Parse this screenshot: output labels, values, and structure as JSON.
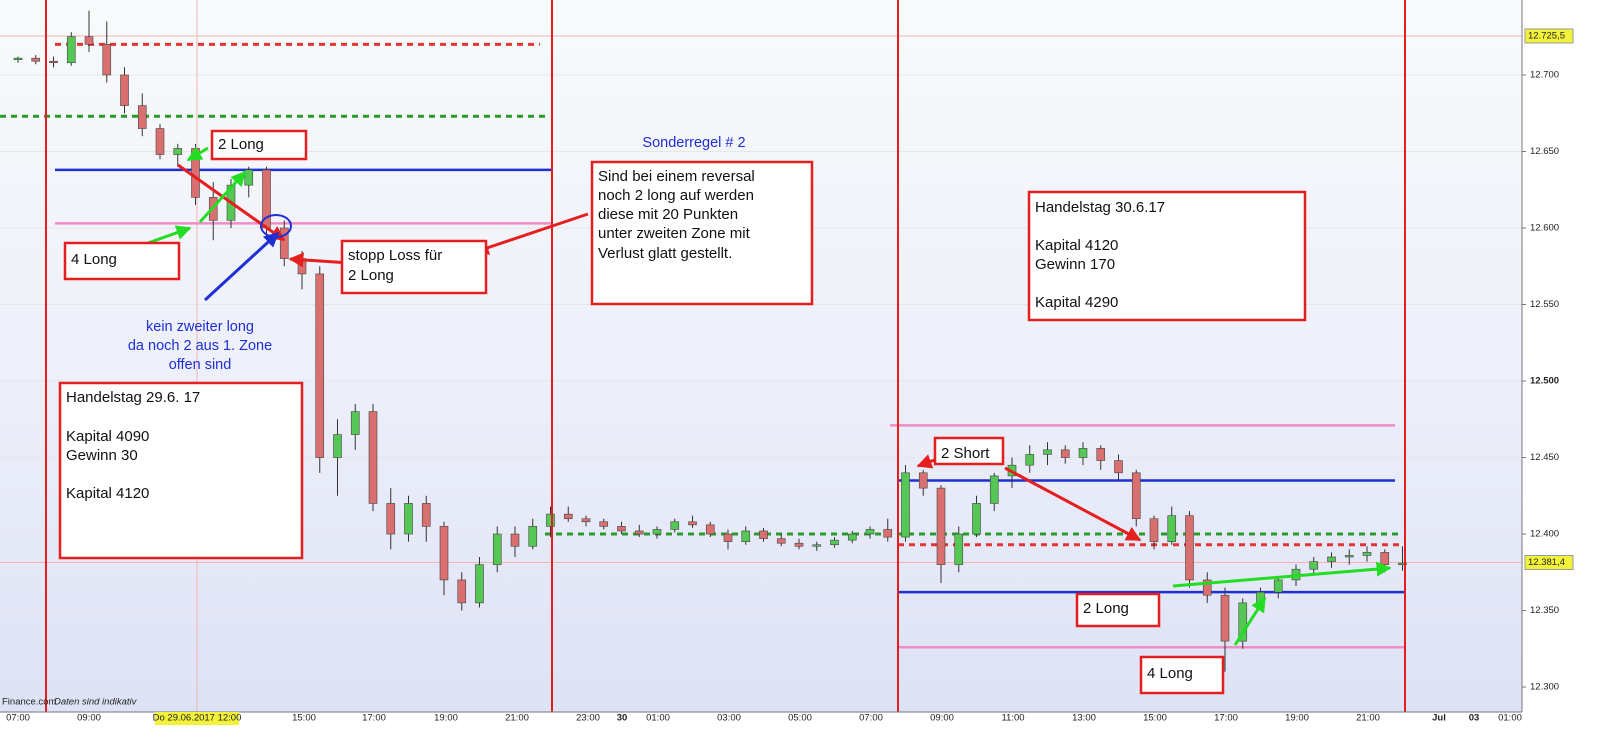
{
  "chart_data": {
    "type": "candlestick",
    "ylim": [
      12285,
      12749
    ],
    "yticks": [
      {
        "value": 12300,
        "label": "12.300"
      },
      {
        "value": 12350,
        "label": "12.350"
      },
      {
        "value": 12400,
        "label": "12.400"
      },
      {
        "value": 12450,
        "label": "12.450"
      },
      {
        "value": 12500,
        "label": "12.500"
      },
      {
        "value": 12550,
        "label": "12.550"
      },
      {
        "value": 12600,
        "label": "12.600"
      },
      {
        "value": 12650,
        "label": "12.650"
      },
      {
        "value": 12700,
        "label": "12.700"
      }
    ],
    "price_markers": [
      {
        "value": 12725.5,
        "label": "12.725,5"
      },
      {
        "value": 12381.4,
        "label": "12.381,4"
      }
    ],
    "xtick_labels": [
      "07:00",
      "09:00",
      "Do 29.06.2017 12:00",
      "15:00",
      "17:00",
      "19:00",
      "21:00",
      "23:00",
      "30",
      "01:00",
      "03:00",
      "05:00",
      "07:00",
      "09:00",
      "11:00",
      "13:00",
      "15:00",
      "17:00",
      "19:00",
      "21:00",
      "Jul",
      "03",
      "01:00"
    ],
    "up_color": "#55c755",
    "down_color": "#d9706f",
    "open": [
      12710,
      12711,
      12709,
      12708,
      12725,
      12720,
      12700,
      12680,
      12665,
      12648,
      12652,
      12620,
      12605,
      12628,
      12638,
      12600,
      12580,
      12570,
      12450,
      12465,
      12480,
      12420,
      12400,
      12420,
      12405,
      12370,
      12355,
      12380,
      12400,
      12392,
      12405,
      12413,
      12410,
      12408,
      12405,
      12402,
      12400,
      12403,
      12408,
      12406,
      12400,
      12395,
      12402,
      12397,
      12394,
      12392,
      12393,
      12396,
      12400,
      12403,
      12398,
      12440,
      12430,
      12380,
      12400,
      12420,
      12438,
      12445,
      12452,
      12455,
      12450,
      12456,
      12448,
      12440,
      12410,
      12395,
      12412,
      12370,
      12360,
      12330,
      12355,
      12362,
      12370,
      12377,
      12382,
      12385,
      12386,
      12388,
      12380
    ],
    "high": [
      12712,
      12713,
      12712,
      12728,
      12742,
      12735,
      12705,
      12688,
      12668,
      12655,
      12655,
      12630,
      12632,
      12640,
      12640,
      12605,
      12585,
      12575,
      12475,
      12485,
      12485,
      12430,
      12425,
      12425,
      12408,
      12375,
      12385,
      12405,
      12405,
      12410,
      12418,
      12418,
      12412,
      12410,
      12408,
      12406,
      12405,
      12410,
      12412,
      12408,
      12403,
      12405,
      12404,
      12400,
      12397,
      12395,
      12398,
      12402,
      12405,
      12410,
      12445,
      12442,
      12432,
      12405,
      12425,
      12440,
      12450,
      12458,
      12460,
      12458,
      12460,
      12458,
      12452,
      12442,
      12412,
      12418,
      12415,
      12375,
      12365,
      12358,
      12365,
      12372,
      12380,
      12385,
      12388,
      12390,
      12392,
      12390,
      12392
    ],
    "low": [
      12708,
      12707,
      12705,
      12706,
      12715,
      12695,
      12675,
      12660,
      12645,
      12640,
      12615,
      12592,
      12600,
      12620,
      12595,
      12575,
      12560,
      12440,
      12425,
      12455,
      12415,
      12390,
      12395,
      12395,
      12360,
      12350,
      12352,
      12375,
      12385,
      12390,
      12398,
      12408,
      12405,
      12403,
      12400,
      12398,
      12397,
      12401,
      12404,
      12398,
      12390,
      12393,
      12395,
      12392,
      12390,
      12389,
      12391,
      12394,
      12397,
      12395,
      12395,
      12425,
      12368,
      12375,
      12398,
      12415,
      12430,
      12440,
      12445,
      12446,
      12445,
      12442,
      12435,
      12405,
      12390,
      12393,
      12365,
      12355,
      12310,
      12325,
      12350,
      12358,
      12366,
      12373,
      12378,
      12380,
      12382,
      12375,
      12376
    ],
    "close": [
      12711,
      12709,
      12708,
      12725,
      12720,
      12700,
      12680,
      12665,
      12648,
      12652,
      12620,
      12605,
      12628,
      12638,
      12600,
      12580,
      12570,
      12450,
      12465,
      12480,
      12420,
      12400,
      12420,
      12405,
      12370,
      12355,
      12380,
      12400,
      12392,
      12405,
      12413,
      12410,
      12408,
      12405,
      12402,
      12400,
      12403,
      12408,
      12406,
      12400,
      12395,
      12402,
      12397,
      12394,
      12392,
      12393,
      12396,
      12400,
      12403,
      12398,
      12440,
      12430,
      12380,
      12400,
      12420,
      12438,
      12445,
      12452,
      12455,
      12450,
      12456,
      12448,
      12440,
      12410,
      12395,
      12412,
      12370,
      12360,
      12330,
      12355,
      12362,
      12370,
      12377,
      12382,
      12385,
      12386,
      12388,
      12380,
      12381
    ],
    "levels": [
      {
        "value": 12720,
        "color": "#e53333",
        "dashed": true
      },
      {
        "value": 12673,
        "color": "#2a9a2a",
        "dashed": true
      },
      {
        "value": 12638,
        "color": "#1f2fd6",
        "dashed": false
      },
      {
        "value": 12603,
        "color": "#f08cc8",
        "dashed": false
      },
      {
        "value": 12400,
        "color": "#2a9a2a",
        "dashed": true
      },
      {
        "value": 12471,
        "color": "#f08cc8",
        "dashed": false
      },
      {
        "value": 12435,
        "color": "#1f2fd6",
        "dashed": false
      },
      {
        "value": 12393,
        "color": "#e53333",
        "dashed": true
      },
      {
        "value": 12362,
        "color": "#1f2fd6",
        "dashed": false
      },
      {
        "value": 12326,
        "color": "#f08cc8",
        "dashed": false
      }
    ],
    "boxes": [
      {
        "lines": [
          "2 Long"
        ]
      },
      {
        "lines": [
          "4 Long"
        ]
      },
      {
        "lines": [
          "stopp Loss für",
          "2 Long"
        ]
      },
      {
        "lines": [
          "Sind bei einem reversal",
          "noch 2 long auf werden",
          "diese mit 20 Punkten",
          "unter zweiten Zone mit",
          "Verlust glatt gestellt."
        ]
      },
      {
        "lines": [
          "Handelstag 29.6. 17",
          "Kapital 4090",
          "Gewinn    30",
          "Kapital  4120"
        ]
      },
      {
        "lines": [
          "Handelstag  30.6.17",
          "Kapital  4120",
          "Gewinn   170",
          "Kapital   4290"
        ]
      },
      {
        "lines": [
          "2 Short"
        ]
      },
      {
        "lines": [
          "2 Long"
        ]
      },
      {
        "lines": [
          "4 Long"
        ]
      }
    ],
    "notes": [
      {
        "lines": [
          "Sonderregel # 2"
        ]
      },
      {
        "lines": [
          "kein zweiter long",
          "da noch 2 aus 1. Zone",
          "offen sind"
        ]
      }
    ],
    "footer": {
      "source": "Finance.com",
      "disclaimer": "Daten sind indikativ"
    }
  }
}
